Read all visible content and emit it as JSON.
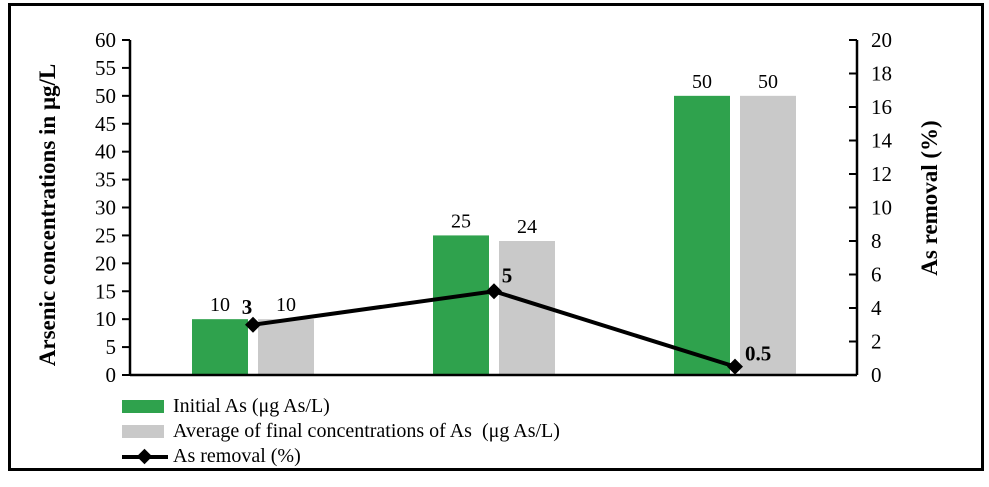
{
  "chart_data": {
    "type": "bar+line combo",
    "categories": [
      "",
      "",
      ""
    ],
    "series": [
      {
        "name": "Initial As (μg As/L)",
        "type": "bar",
        "axis": "left",
        "color": "#2FA24D",
        "values": [
          10,
          25,
          50
        ],
        "labels": [
          "10",
          "25",
          "50"
        ]
      },
      {
        "name": "Average of final concentrations of As  (μg As/L)",
        "type": "bar",
        "axis": "left",
        "color": "#C9C9C9",
        "values": [
          10,
          24,
          50
        ],
        "labels": [
          "10",
          "24",
          "50"
        ]
      },
      {
        "name": "As removal (%)",
        "type": "line",
        "axis": "right",
        "color": "#000000",
        "marker": "diamond",
        "values": [
          3,
          5,
          0.5
        ],
        "labels": [
          "3",
          "5",
          "0.5"
        ]
      }
    ],
    "left_axis": {
      "label": "Arsenic concentrations in μg/L",
      "min": 0,
      "max": 60,
      "step": 5,
      "ticks": [
        0,
        5,
        10,
        15,
        20,
        25,
        30,
        35,
        40,
        45,
        50,
        55,
        60
      ]
    },
    "right_axis": {
      "label": "As removal (%)",
      "min": 0,
      "max": 20,
      "step": 2,
      "ticks": [
        0,
        2,
        4,
        6,
        8,
        10,
        12,
        14,
        16,
        18,
        20
      ]
    },
    "x_axis": {
      "labels": []
    },
    "grid": false,
    "legend_position": "bottom-left"
  },
  "colors": {
    "bar_initial": "#2FA24D",
    "bar_final": "#C9C9C9",
    "line": "#000000",
    "axis": "#000000",
    "frame_border": "#000000",
    "background": "#FFFFFF"
  }
}
